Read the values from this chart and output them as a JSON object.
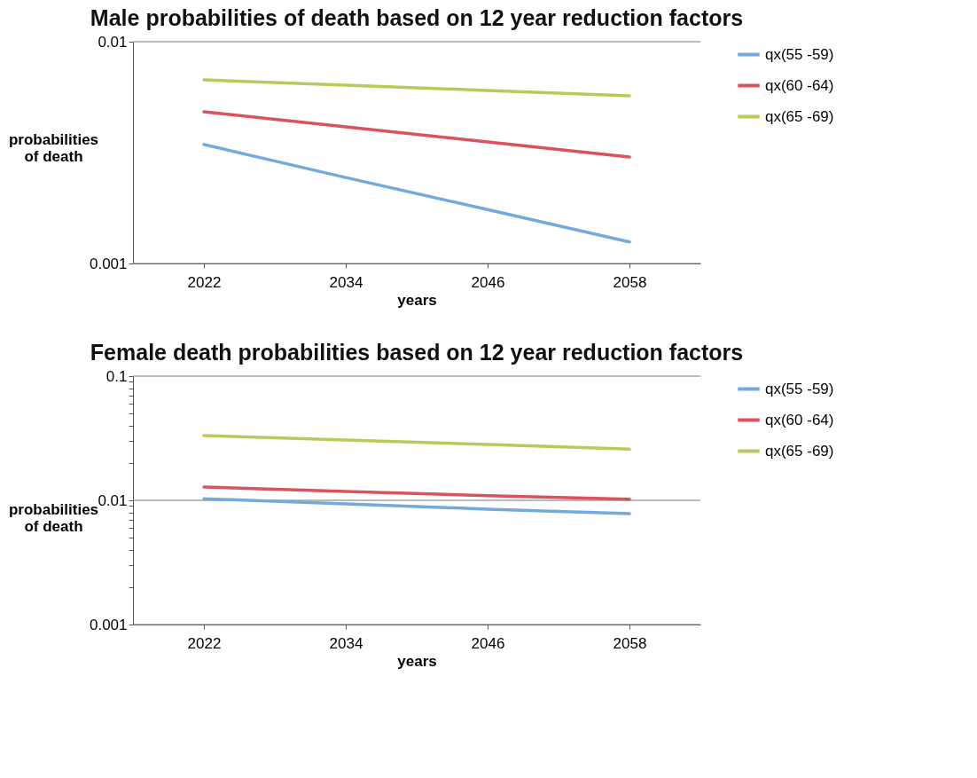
{
  "chart_data": [
    {
      "type": "line",
      "title": "Male probabilities of death based on 12 year reduction factors",
      "xlabel": "years",
      "ylabel": "probabilities of death",
      "categories": [
        "2022",
        "2034",
        "2046",
        "2058"
      ],
      "log": true,
      "ylim": [
        0.001,
        0.01
      ],
      "yticks": [
        0.001,
        0.01
      ],
      "grid": "y",
      "legend": "right",
      "series": [
        {
          "name": "qx(55 -59)",
          "color": "#74a9db",
          "values": [
            0.00344,
            0.00244,
            0.00175,
            0.00125
          ]
        },
        {
          "name": "qx(60 -64)",
          "color": "#d9525e",
          "values": [
            0.00483,
            0.00413,
            0.00353,
            0.00302
          ]
        },
        {
          "name": "qx(65 -69)",
          "color": "#b5cc5a",
          "values": [
            0.00673,
            0.00637,
            0.00603,
            0.0057
          ]
        }
      ]
    },
    {
      "type": "line",
      "title": "Female death probabilities based on 12 year reduction factors",
      "xlabel": "years",
      "ylabel": "probabilities of death",
      "categories": [
        "2022",
        "2034",
        "2046",
        "2058"
      ],
      "log": true,
      "ylim": [
        0.001,
        0.1
      ],
      "yticks": [
        0.001,
        {
          "value": 0.002,
          "label": null
        },
        {
          "value": 0.003,
          "label": null
        },
        {
          "value": 0.004,
          "label": null
        },
        {
          "value": 0.005,
          "label": null
        },
        {
          "value": 0.006,
          "label": null
        },
        {
          "value": 0.007,
          "label": null
        },
        {
          "value": 0.008,
          "label": null
        },
        {
          "value": 0.009,
          "label": null
        },
        0.01,
        {
          "value": 0.02,
          "label": null
        },
        {
          "value": 0.03,
          "label": null
        },
        {
          "value": 0.04,
          "label": null
        },
        {
          "value": 0.05,
          "label": null
        },
        {
          "value": 0.06,
          "label": null
        },
        {
          "value": 0.07,
          "label": null
        },
        {
          "value": 0.08,
          "label": null
        },
        {
          "value": 0.09,
          "label": null
        },
        0.1
      ],
      "grid": "y",
      "legend": "right",
      "series": [
        {
          "name": "qx(55 -59)",
          "color": "#74a9db",
          "values": [
            0.0103,
            0.00936,
            0.0085,
            0.0078
          ]
        },
        {
          "name": "qx(60 -64)",
          "color": "#d9525e",
          "values": [
            0.0128,
            0.0118,
            0.0109,
            0.0102
          ]
        },
        {
          "name": "qx(65 -69)",
          "color": "#b5cc5a",
          "values": [
            0.0332,
            0.0306,
            0.0282,
            0.0259
          ]
        }
      ]
    }
  ]
}
